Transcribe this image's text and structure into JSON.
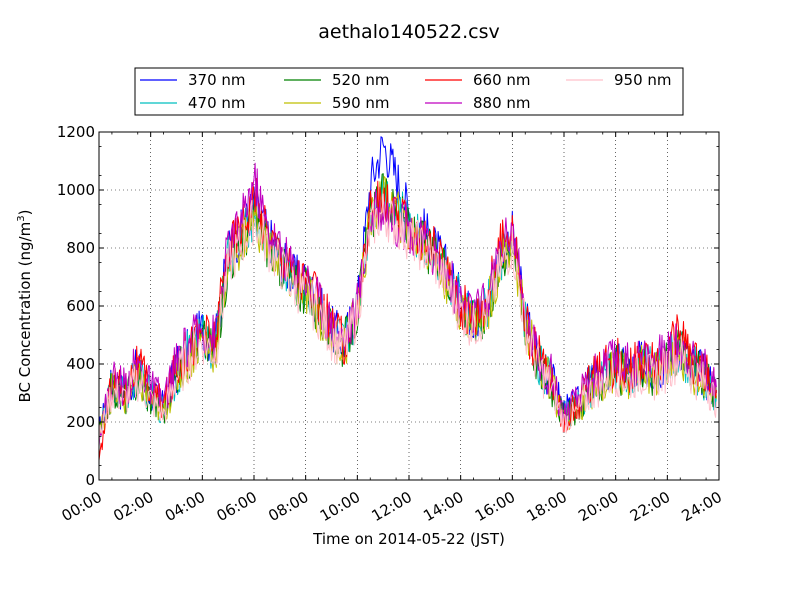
{
  "chart_data": {
    "type": "line",
    "title": "aethalo140522.csv",
    "xlabel": "Time on 2014-05-22 (JST)",
    "ylabel": "BC Concentration (ng/m",
    "ylabel_sup": "3",
    "ylabel_end": ")",
    "xlim": [
      0,
      24
    ],
    "ylim": [
      0,
      1200
    ],
    "grid": true,
    "legend_position": "top",
    "x_ticks": [
      {
        "value": 0,
        "label": "00:00"
      },
      {
        "value": 2,
        "label": "02:00"
      },
      {
        "value": 4,
        "label": "04:00"
      },
      {
        "value": 6,
        "label": "06:00"
      },
      {
        "value": 8,
        "label": "08:00"
      },
      {
        "value": 10,
        "label": "10:00"
      },
      {
        "value": 12,
        "label": "12:00"
      },
      {
        "value": 14,
        "label": "14:00"
      },
      {
        "value": 16,
        "label": "16:00"
      },
      {
        "value": 18,
        "label": "18:00"
      },
      {
        "value": 20,
        "label": "20:00"
      },
      {
        "value": 22,
        "label": "22:00"
      },
      {
        "value": 24,
        "label": "24:00"
      }
    ],
    "y_ticks": [
      {
        "value": 0,
        "label": "0"
      },
      {
        "value": 200,
        "label": "200"
      },
      {
        "value": 400,
        "label": "400"
      },
      {
        "value": 600,
        "label": "600"
      },
      {
        "value": 800,
        "label": "800"
      },
      {
        "value": 1000,
        "label": "1000"
      },
      {
        "value": 1200,
        "label": "1200"
      }
    ],
    "x": [
      0.0,
      0.5,
      1.0,
      1.5,
      2.0,
      2.5,
      3.0,
      3.5,
      4.0,
      4.5,
      5.0,
      5.5,
      6.0,
      6.5,
      7.0,
      7.5,
      8.0,
      8.5,
      9.0,
      9.5,
      10.0,
      10.5,
      11.0,
      11.5,
      12.0,
      12.5,
      13.0,
      13.5,
      14.0,
      14.5,
      15.0,
      15.5,
      16.0,
      16.5,
      17.0,
      17.5,
      18.0,
      18.5,
      19.0,
      19.5,
      20.0,
      20.5,
      21.0,
      21.5,
      22.0,
      22.5,
      23.0,
      23.5,
      23.9
    ],
    "series": [
      {
        "name": "370 nm",
        "color": "#0000ff",
        "values": [
          170,
          330,
          300,
          380,
          300,
          250,
          380,
          450,
          520,
          470,
          790,
          850,
          950,
          850,
          770,
          700,
          680,
          600,
          520,
          480,
          600,
          1020,
          1160,
          1050,
          920,
          870,
          800,
          720,
          620,
          560,
          600,
          760,
          850,
          560,
          420,
          350,
          240,
          260,
          330,
          360,
          400,
          370,
          400,
          380,
          420,
          460,
          390,
          360,
          300
        ]
      },
      {
        "name": "470 nm",
        "color": "#00bfbf",
        "values": [
          160,
          320,
          290,
          360,
          290,
          240,
          370,
          440,
          500,
          450,
          760,
          830,
          920,
          830,
          760,
          690,
          660,
          590,
          510,
          470,
          590,
          920,
          1000,
          950,
          870,
          830,
          780,
          700,
          610,
          550,
          590,
          750,
          840,
          550,
          410,
          340,
          220,
          250,
          320,
          350,
          390,
          360,
          390,
          370,
          410,
          450,
          380,
          350,
          290
        ]
      },
      {
        "name": "520 nm",
        "color": "#008000",
        "values": [
          155,
          315,
          285,
          355,
          285,
          235,
          365,
          430,
          490,
          445,
          750,
          820,
          910,
          820,
          750,
          680,
          650,
          580,
          505,
          465,
          585,
          900,
          980,
          930,
          860,
          820,
          770,
          690,
          600,
          545,
          585,
          745,
          835,
          545,
          405,
          335,
          215,
          245,
          315,
          345,
          385,
          355,
          385,
          365,
          405,
          445,
          375,
          345,
          285
        ]
      },
      {
        "name": "590 nm",
        "color": "#bfbf00",
        "values": [
          150,
          310,
          280,
          350,
          280,
          230,
          360,
          425,
          485,
          440,
          745,
          815,
          905,
          815,
          745,
          675,
          645,
          575,
          500,
          460,
          580,
          890,
          970,
          925,
          855,
          815,
          765,
          685,
          595,
          540,
          580,
          740,
          830,
          540,
          400,
          330,
          210,
          240,
          310,
          340,
          380,
          350,
          380,
          360,
          400,
          440,
          370,
          340,
          280
        ]
      },
      {
        "name": "660 nm",
        "color": "#ff0000",
        "values": [
          60,
          340,
          310,
          390,
          310,
          260,
          390,
          460,
          510,
          480,
          800,
          870,
          980,
          860,
          790,
          720,
          690,
          610,
          530,
          470,
          590,
          930,
          960,
          900,
          880,
          820,
          790,
          720,
          600,
          560,
          620,
          800,
          900,
          540,
          420,
          350,
          200,
          260,
          340,
          370,
          410,
          380,
          410,
          390,
          430,
          520,
          400,
          370,
          310
        ]
      },
      {
        "name": "880 nm",
        "color": "#bf00bf",
        "values": [
          150,
          350,
          320,
          400,
          320,
          270,
          400,
          470,
          520,
          490,
          810,
          880,
          1040,
          870,
          800,
          730,
          700,
          620,
          540,
          480,
          600,
          900,
          940,
          890,
          870,
          820,
          780,
          710,
          610,
          570,
          610,
          790,
          880,
          550,
          430,
          360,
          230,
          270,
          350,
          380,
          420,
          390,
          420,
          400,
          440,
          470,
          410,
          380,
          320
        ]
      },
      {
        "name": "950 nm",
        "color": "#ffc0cb",
        "values": [
          145,
          305,
          275,
          345,
          275,
          225,
          355,
          420,
          480,
          435,
          740,
          810,
          900,
          810,
          740,
          670,
          640,
          570,
          495,
          455,
          575,
          870,
          920,
          880,
          840,
          800,
          750,
          670,
          580,
          530,
          570,
          720,
          810,
          530,
          390,
          320,
          200,
          230,
          300,
          330,
          370,
          340,
          370,
          350,
          390,
          430,
          360,
          330,
          270
        ]
      }
    ]
  }
}
